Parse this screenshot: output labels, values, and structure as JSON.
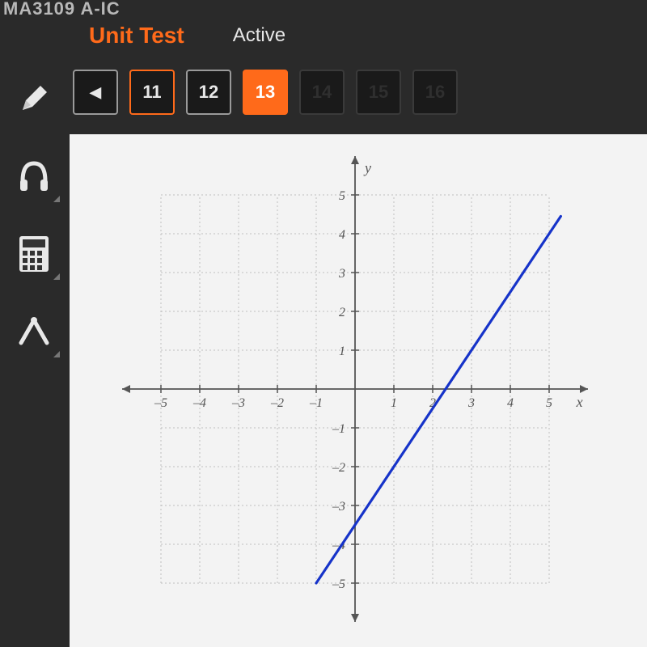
{
  "course_code": "MA3109 A-IC",
  "header": {
    "title": "Unit Test",
    "status": "Active",
    "title_color": "#ff6a1a",
    "status_color": "#e6e6e6"
  },
  "nav": {
    "prev_glyph": "◀",
    "items": [
      {
        "label": "11",
        "state": "orange-border"
      },
      {
        "label": "12",
        "state": "normal"
      },
      {
        "label": "13",
        "state": "current"
      },
      {
        "label": "14",
        "state": "dim"
      },
      {
        "label": "15",
        "state": "dim"
      },
      {
        "label": "16",
        "state": "dim"
      }
    ],
    "accent_color": "#ff6a1a"
  },
  "tools": {
    "pencil": "pencil-icon",
    "headphones": "headphones-icon",
    "calculator": "calculator-icon",
    "compass": "compass-icon"
  },
  "graph": {
    "type": "line",
    "xlim": [
      -5,
      5
    ],
    "ylim": [
      -5,
      5
    ],
    "xtick_step": 1,
    "ytick_step": 1,
    "x_axis_label": "x",
    "y_axis_label": "y",
    "grid_min": -5,
    "grid_max": 5,
    "x_ticks_neg": [
      -5,
      -4,
      -3,
      -2,
      -1
    ],
    "x_ticks_pos": [
      1,
      2,
      3,
      4,
      5
    ],
    "y_ticks_neg": [
      -1,
      -2,
      -3,
      -4,
      -5
    ],
    "y_ticks_pos": [
      1,
      2,
      3,
      4,
      5
    ],
    "background_color": "#f3f3f3",
    "grid_color": "#bfbfbf",
    "axis_color": "#555555",
    "label_color": "#555555",
    "label_fontsize": 18,
    "tick_fontsize": 16,
    "line_color": "#1633c9",
    "line_width": 3.2,
    "line_points": [
      {
        "x": -1.0,
        "y": -5.0
      },
      {
        "x": 5.3,
        "y": 4.45
      }
    ],
    "slope": 1.5,
    "y_intercept": -3.5
  }
}
